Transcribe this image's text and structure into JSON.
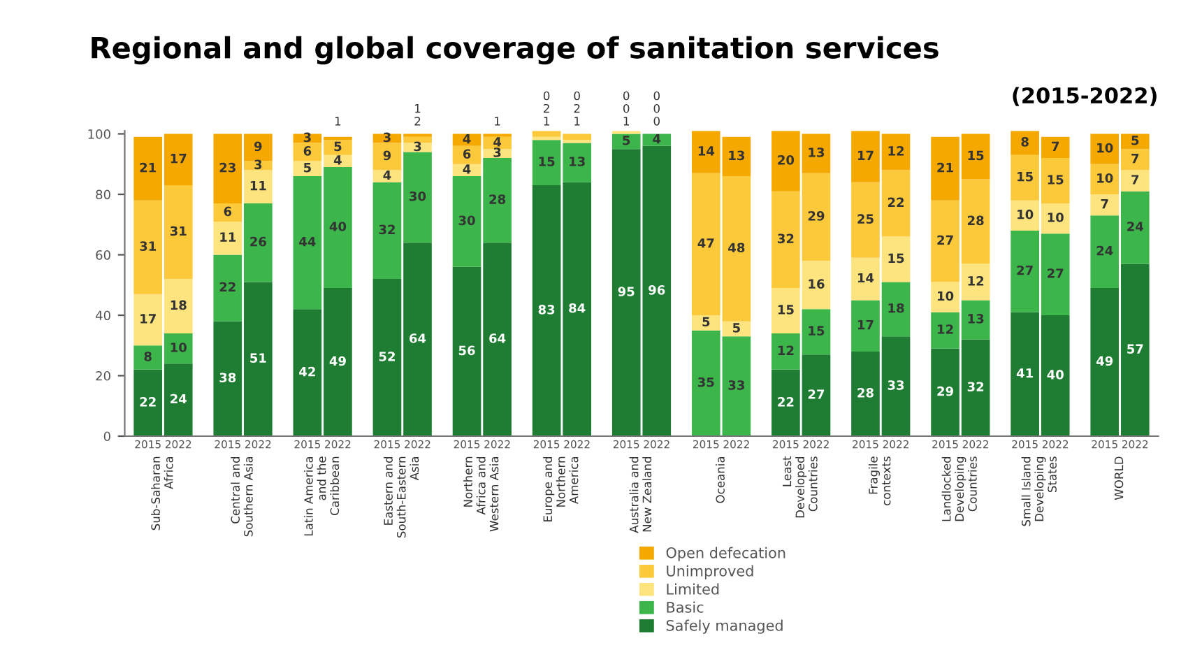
{
  "chart_data": {
    "type": "bar",
    "title": "Regional and global coverage of sanitation services",
    "subtitle": "(2015-2022)",
    "categories": [
      "2015",
      "2022",
      "2015",
      "2022",
      "2015",
      "2022",
      "2015",
      "2022",
      "2015",
      "2022",
      "2015",
      "2022",
      "2015",
      "2022",
      "2015",
      "2022",
      "2015",
      "2022",
      "2015",
      "2022",
      "2015",
      "2022",
      "2015",
      "2022",
      "2015",
      "2022"
    ],
    "annotations": [
      "Sub-Saharan\nAfrica",
      "Central and\nSouthern Asia",
      "Latin America\nand the\nCaribbean",
      "Eastern and\nSouth-Eastern\nAsia",
      "Northern\nAfrica and\nWestern Asia",
      "Europe and\nNorthern\nAmerica",
      "Australia and\nNew Zealand",
      "Oceania",
      "Least\nDeveloped\nCountries",
      "Fragile\ncontexts",
      "Landlocked\nDeveloping\nCountries",
      "Small Island\nDeveloping\nStates",
      "WORLD"
    ],
    "stacked": true,
    "data_labels": true,
    "legend": "bottom",
    "grid": false,
    "ylim": [
      0,
      101
    ],
    "yticks": [
      0,
      20,
      40,
      60,
      80,
      100
    ],
    "series": [
      {
        "name": "Safely managed",
        "color": "#1e7d32",
        "values": [
          22,
          24,
          38,
          51,
          42,
          49,
          52,
          64,
          56,
          64,
          83,
          84,
          95,
          96,
          null,
          null,
          22,
          27,
          28,
          33,
          29,
          32,
          41,
          40,
          49,
          57
        ]
      },
      {
        "name": "Basic",
        "color": "#3cb54a",
        "values": [
          8,
          10,
          22,
          26,
          44,
          40,
          32,
          30,
          30,
          28,
          15,
          13,
          5,
          4,
          35,
          33,
          12,
          15,
          17,
          18,
          12,
          13,
          27,
          27,
          24,
          24
        ]
      },
      {
        "name": "Limited",
        "color": "#fde47f",
        "values": [
          17,
          18,
          11,
          11,
          5,
          4,
          4,
          3,
          4,
          3,
          1,
          1,
          1,
          0,
          5,
          5,
          15,
          16,
          14,
          15,
          10,
          12,
          10,
          10,
          7,
          7
        ]
      },
      {
        "name": "Unimproved",
        "color": "#fcc93a",
        "values": [
          31,
          31,
          6,
          3,
          6,
          5,
          9,
          2,
          6,
          4,
          2,
          2,
          0,
          0,
          47,
          48,
          32,
          29,
          25,
          22,
          27,
          28,
          15,
          15,
          10,
          7
        ]
      },
      {
        "name": "Open defecation",
        "color": "#f5a800",
        "values": [
          21,
          17,
          23,
          9,
          3,
          1,
          3,
          1,
          4,
          1,
          0,
          0,
          0,
          0,
          14,
          13,
          20,
          13,
          17,
          12,
          21,
          15,
          8,
          7,
          10,
          5
        ]
      }
    ]
  }
}
